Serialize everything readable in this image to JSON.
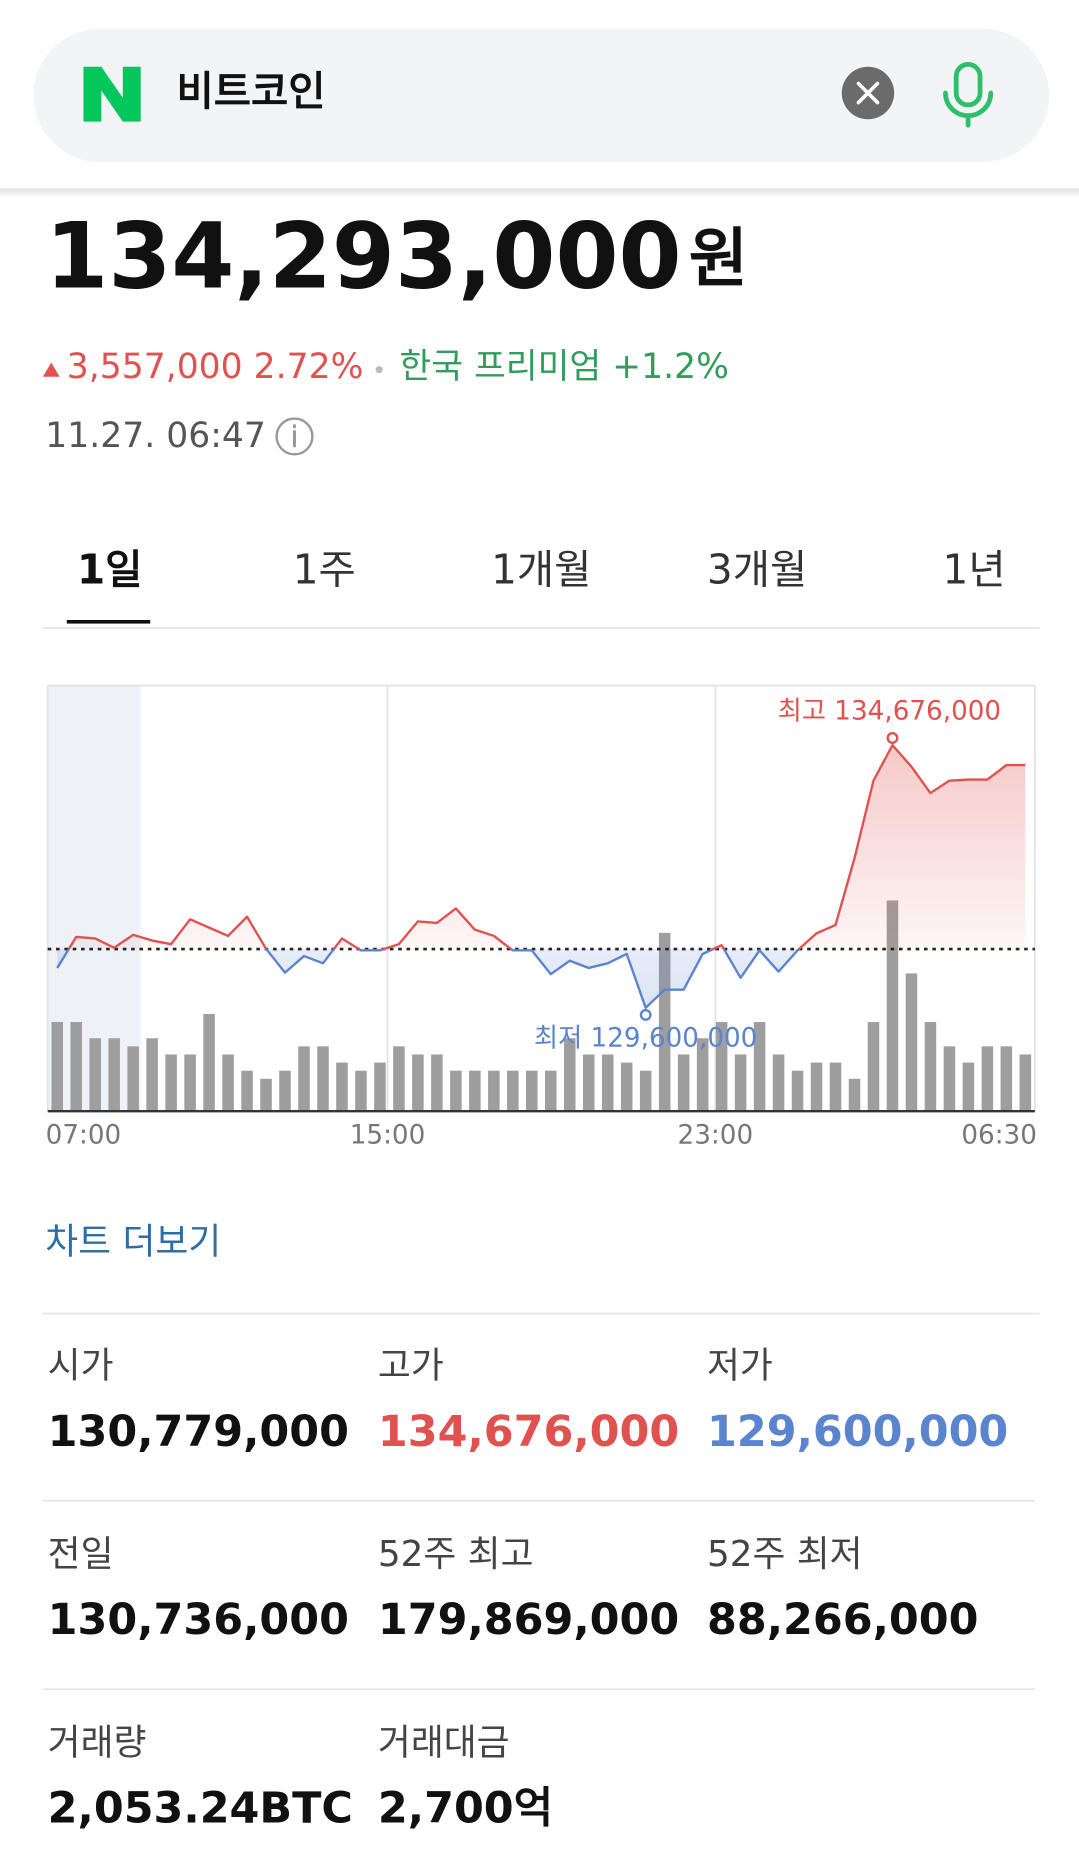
{
  "search": {
    "query": "비트코인"
  },
  "quote": {
    "price": "134,293,000",
    "unit": "원",
    "change": "3,557,000 2.72%",
    "premium": "한국 프리미엄 +1.2%",
    "time": "11.27. 06:47"
  },
  "tabs": [
    "1일",
    "1주",
    "1개월",
    "3개월",
    "1년"
  ],
  "chart_data": {
    "type": "line",
    "values": [
      130370000,
      130970000,
      130940000,
      130760000,
      131010000,
      130900000,
      130830000,
      131310000,
      131150000,
      130990000,
      131360000,
      130740000,
      130280000,
      130600000,
      130460000,
      130940000,
      130710000,
      130710000,
      130830000,
      131270000,
      131240000,
      131520000,
      131110000,
      130990000,
      130710000,
      130710000,
      130250000,
      130510000,
      130370000,
      130460000,
      130640000,
      129600000,
      129950000,
      129950000,
      130640000,
      130810000,
      130180000,
      130710000,
      130300000,
      130710000,
      131040000,
      131200000,
      132490000,
      133990000,
      134676000,
      134260000,
      133750000,
      133990000,
      134010000,
      134010000,
      134290000,
      134290000
    ],
    "volumes": [
      22,
      22,
      18,
      18,
      16,
      18,
      14,
      14,
      24,
      14,
      10,
      8,
      10,
      16,
      16,
      12,
      10,
      12,
      16,
      14,
      14,
      10,
      10,
      10,
      10,
      10,
      10,
      18,
      14,
      14,
      12,
      10,
      44,
      14,
      18,
      22,
      14,
      22,
      14,
      10,
      12,
      12,
      8,
      22,
      52,
      34,
      22,
      16,
      12,
      16,
      16,
      14
    ],
    "baseline": 130736000,
    "ylim": [
      128000000,
      136000000
    ],
    "y2lim": [
      0,
      60
    ],
    "x_labels": [
      "07:00",
      "15:00",
      "23:00",
      "06:30"
    ],
    "high_label": "최고 134,676,000",
    "low_label": "최저 129,600,000",
    "up_color": "#e0524f",
    "down_color": "#5b84cf",
    "volume_color": "#9e9e9e"
  },
  "more_link": "차트 더보기",
  "stats": [
    {
      "label": "시가",
      "value": "130,779,000"
    },
    {
      "label": "고가",
      "value": "134,676,000",
      "color": "#e0524f"
    },
    {
      "label": "저가",
      "value": "129,600,000",
      "color": "#5b84cf"
    },
    {
      "label": "전일",
      "value": "130,736,000"
    },
    {
      "label": "52주 최고",
      "value": "179,869,000"
    },
    {
      "label": "52주 최저",
      "value": "88,266,000"
    },
    {
      "label": "거래량",
      "value": "2,053.24BTC"
    },
    {
      "label": "거래대금",
      "value": "2,700억"
    }
  ]
}
